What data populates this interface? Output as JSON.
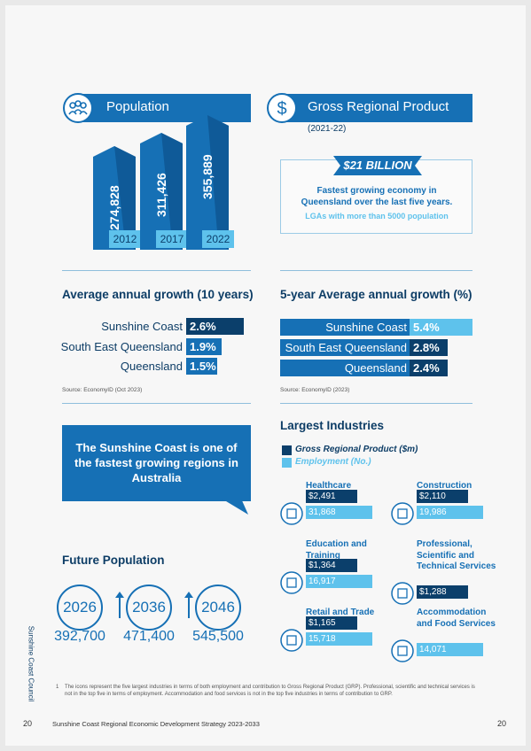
{
  "population": {
    "title": "Population",
    "bars": [
      {
        "value": "274,828",
        "year": "2012"
      },
      {
        "value": "311,426",
        "year": "2017"
      },
      {
        "value": "355,889",
        "year": "2022"
      }
    ]
  },
  "grp": {
    "title": "Gross Regional Product",
    "period": "(2021-22)",
    "amount": "$21 BILLION",
    "text": "Fastest growing economy in Queensland over the last five years.",
    "note": "LGAs with more than 5000 population"
  },
  "growth10": {
    "title": "Average annual growth (10 years)",
    "rows": [
      {
        "label": "Sunshine Coast",
        "value": "2.6%"
      },
      {
        "label": "South East Queensland",
        "value": "1.9%"
      },
      {
        "label": "Queensland",
        "value": "1.5%"
      }
    ],
    "source": "Source: EconomyID (Oct 2023)"
  },
  "growth5": {
    "title": "5-year Average annual growth (%)",
    "rows": [
      {
        "label": "Sunshine Coast",
        "value": "5.4%"
      },
      {
        "label": "South East Queensland",
        "value": "2.8%"
      },
      {
        "label": "Queensland",
        "value": "2.4%"
      }
    ],
    "source": "Source: EconomyID (2023)"
  },
  "callout": "The Sunshine Coast is one of the fastest growing regions in Australia",
  "industries": {
    "title": "Largest Industries",
    "legend": [
      "Gross Regional Product ($m)",
      "Employment (No.)"
    ],
    "items": [
      {
        "name": "Healthcare",
        "grp": "$2,491",
        "employment": "31,868"
      },
      {
        "name": "Construction",
        "grp": "$2,110",
        "employment": "19,986"
      },
      {
        "name": "Education and Training",
        "grp": "$1,364",
        "employment": "16,917"
      },
      {
        "name": "Professional, Scientific and Technical Services",
        "grp": "$1,288"
      },
      {
        "name": "Retail and Trade",
        "grp": "$1,165",
        "employment": "15,718"
      },
      {
        "name": "Accommodation and Food Services",
        "employment": "14,071"
      }
    ]
  },
  "future": {
    "title": "Future Population",
    "items": [
      {
        "year": "2026",
        "value": "392,700"
      },
      {
        "year": "2036",
        "value": "471,400"
      },
      {
        "year": "2046",
        "value": "545,500"
      }
    ]
  },
  "side": "Sunshine Coast Council",
  "footnote": {
    "number": "1",
    "text": "The icons represent the five largest industries in terms of both employment and contribution to Gross Regional Product (GRP). Professional, scientific and technical services is not in the top five in terms of employment. Accommodation and food services is not in the top five industries in terms of contribution to GRP."
  },
  "footer": {
    "page_left": "20",
    "title": "Sunshine Coast Regional Economic Development Strategy 2023-2033",
    "page_right": "20"
  }
}
